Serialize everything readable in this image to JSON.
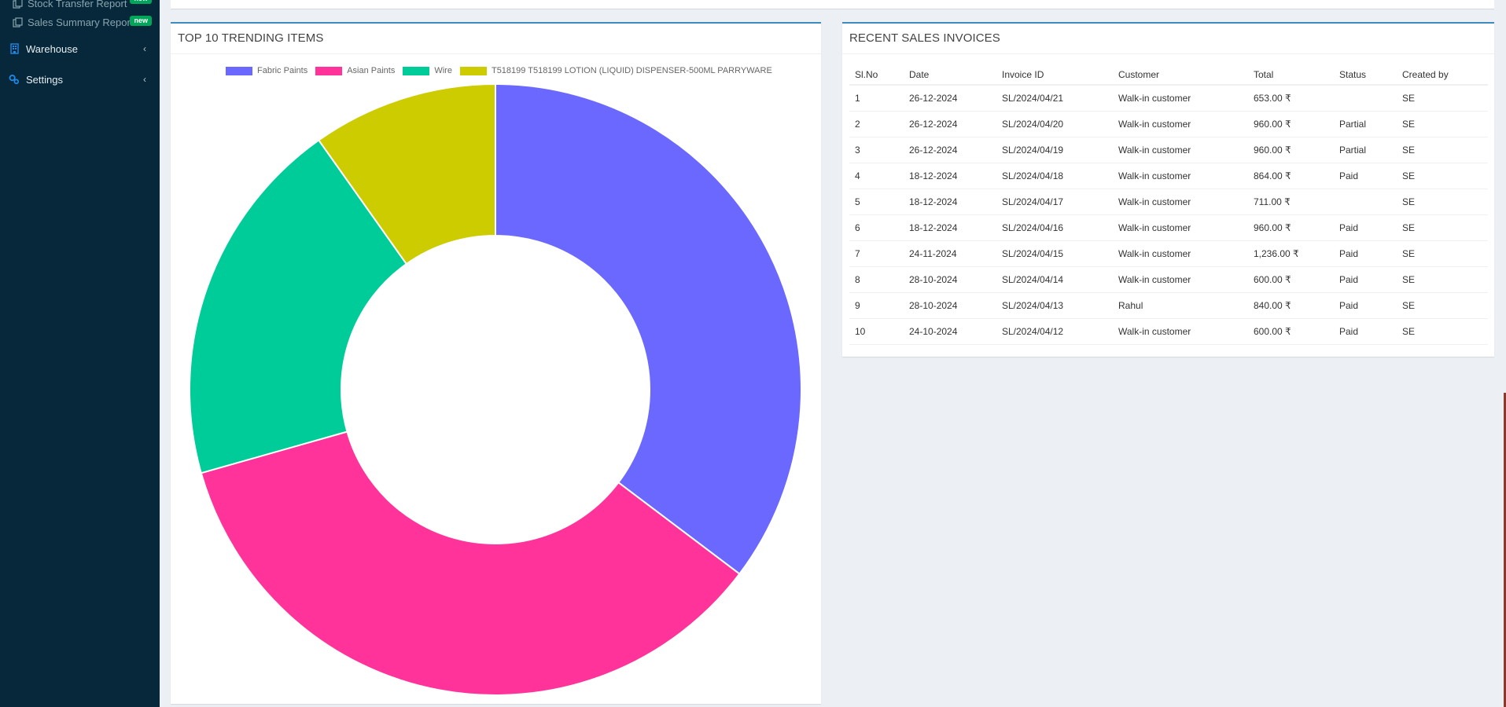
{
  "sidebar": {
    "sub_items": [
      {
        "label": "Stock Transfer Report",
        "badge": "new",
        "icon": "copy-icon"
      },
      {
        "label": "Sales Summary Report",
        "badge": "new",
        "icon": "copy-icon"
      }
    ],
    "items": [
      {
        "label": "Warehouse",
        "icon": "building-icon",
        "chevron": "‹"
      },
      {
        "label": "Settings",
        "icon": "cogs-icon",
        "chevron": "‹"
      }
    ]
  },
  "trending": {
    "title": "TOP 10 TRENDING ITEMS"
  },
  "chart_data": {
    "type": "doughnut",
    "title": "",
    "categories": [
      "Fabric Paints",
      "Asian Paints",
      "Wire",
      "T518199 T518199 LOTION (LIQUID) DISPENSER-500ML PARRYWARE"
    ],
    "values": [
      35.3,
      35.3,
      19.6,
      9.8
    ],
    "colors": [
      "#6b68ff",
      "#ff3399",
      "#00cc99",
      "#cccc00"
    ],
    "legend": "top"
  },
  "invoices": {
    "title": "RECENT SALES INVOICES",
    "headers": [
      "Sl.No",
      "Date",
      "Invoice ID",
      "Customer",
      "Total",
      "Status",
      "Created by"
    ],
    "rows": [
      [
        "1",
        "26-12-2024",
        "SL/2024/04/21",
        "Walk-in customer",
        "653.00 ₹",
        "",
        "SE"
      ],
      [
        "2",
        "26-12-2024",
        "SL/2024/04/20",
        "Walk-in customer",
        "960.00 ₹",
        "Partial",
        "SE"
      ],
      [
        "3",
        "26-12-2024",
        "SL/2024/04/19",
        "Walk-in customer",
        "960.00 ₹",
        "Partial",
        "SE"
      ],
      [
        "4",
        "18-12-2024",
        "SL/2024/04/18",
        "Walk-in customer",
        "864.00 ₹",
        "Paid",
        "SE"
      ],
      [
        "5",
        "18-12-2024",
        "SL/2024/04/17",
        "Walk-in customer",
        "711.00 ₹",
        "",
        "SE"
      ],
      [
        "6",
        "18-12-2024",
        "SL/2024/04/16",
        "Walk-in customer",
        "960.00 ₹",
        "Paid",
        "SE"
      ],
      [
        "7",
        "24-11-2024",
        "SL/2024/04/15",
        "Walk-in customer",
        "1,236.00 ₹",
        "Paid",
        "SE"
      ],
      [
        "8",
        "28-10-2024",
        "SL/2024/04/14",
        "Walk-in customer",
        "600.00 ₹",
        "Paid",
        "SE"
      ],
      [
        "9",
        "28-10-2024",
        "SL/2024/04/13",
        "Rahul",
        "840.00 ₹",
        "Paid",
        "SE"
      ],
      [
        "10",
        "24-10-2024",
        "SL/2024/04/12",
        "Walk-in customer",
        "600.00 ₹",
        "Paid",
        "SE"
      ]
    ]
  }
}
